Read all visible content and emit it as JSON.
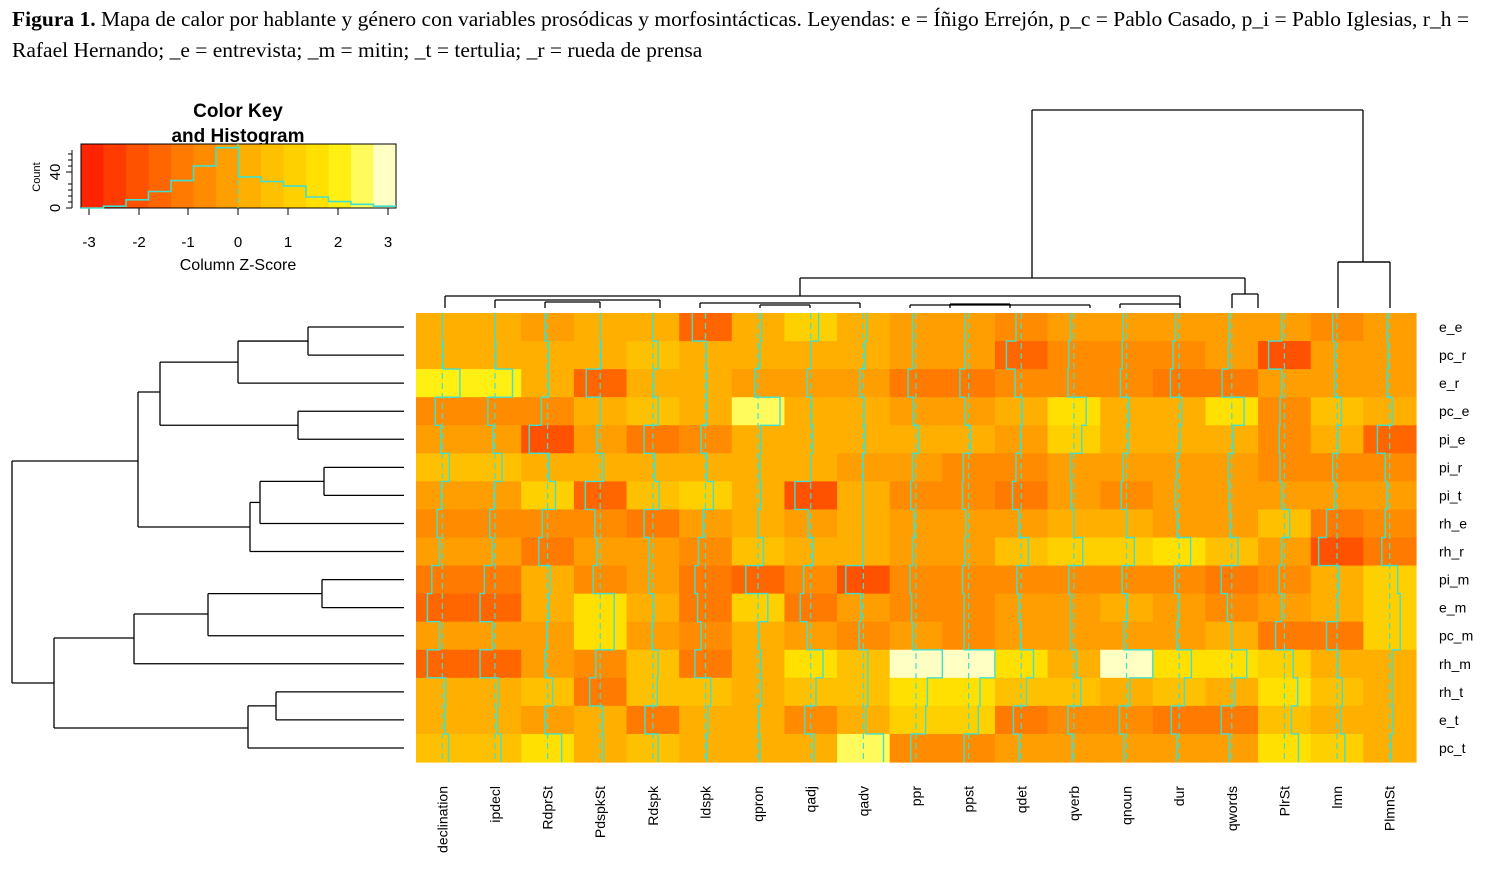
{
  "caption": {
    "label": "Figura 1.",
    "text": " Mapa de calor por hablante y género con variables prosódicas y morfosintácticas. Leyendas: e = Íñigo Errejón, p_c = Pablo Casado, p_i = Pablo Iglesias, r_h = Rafael Hernando; _e = entrevista; _m = mitin; _t = tertulia; _r = rueda de prensa"
  },
  "color_key": {
    "title_line1": "Color Key",
    "title_line2": "and Histogram",
    "ylabel": "Count",
    "yticks": [
      "0",
      "40"
    ],
    "xticks": [
      "-3",
      "-2",
      "-1",
      "0",
      "1",
      "2",
      "3"
    ],
    "xlabel": "Column Z-Score",
    "colors": [
      "#ff2400",
      "#ff3c00",
      "#ff5200",
      "#ff6600",
      "#ff7a00",
      "#ff8c00",
      "#ff9e00",
      "#ffaf00",
      "#ffc000",
      "#ffd000",
      "#ffe000",
      "#ffef12",
      "#fffb5c",
      "#ffffc4"
    ],
    "histogram_counts": [
      0,
      2,
      9,
      18,
      30,
      46,
      66,
      34,
      29,
      24,
      12,
      7,
      4,
      2
    ],
    "histogram_color": "#40e0d0"
  },
  "chart_data": {
    "type": "heatmap",
    "rows": [
      "e_e",
      "pc_r",
      "e_r",
      "pc_e",
      "pi_e",
      "pi_r",
      "pi_t",
      "rh_e",
      "rh_r",
      "pi_m",
      "e_m",
      "pc_m",
      "rh_m",
      "rh_t",
      "e_t",
      "pc_t"
    ],
    "columns": [
      "declination",
      "ipdecl",
      "RdprSt",
      "PdspkSt",
      "Rdspk",
      "ldspk",
      "qpron",
      "qadj",
      "qadv",
      "ppr",
      "ppst",
      "qdet",
      "qverb",
      "qnoun",
      "dur",
      "qwords",
      "PlrSt",
      "lmn",
      "PlmnSt"
    ],
    "values_zscore": [
      [
        0.0,
        0.0,
        -0.3,
        0.0,
        0.0,
        -1.5,
        0.4,
        0.9,
        0.4,
        -0.4,
        -0.4,
        -0.6,
        -0.4,
        -0.4,
        -0.4,
        -0.3,
        -0.3,
        -0.5,
        -0.3
      ],
      [
        0.1,
        0.1,
        0.1,
        0.1,
        0.6,
        0.1,
        0.2,
        0.0,
        0.2,
        -0.4,
        -0.4,
        -1.7,
        -0.6,
        -0.5,
        -0.7,
        -0.4,
        -1.8,
        -0.3,
        -0.2
      ],
      [
        2.0,
        2.0,
        0.1,
        -1.6,
        0.1,
        0.2,
        -0.4,
        -0.4,
        -0.4,
        -0.9,
        -1.0,
        -0.7,
        -0.7,
        -0.7,
        -1.0,
        -1.1,
        -0.3,
        -0.3,
        -0.3
      ],
      [
        -0.8,
        -0.8,
        -0.7,
        0.0,
        0.6,
        0.2,
        2.5,
        0.1,
        0.1,
        -0.3,
        -0.4,
        0.1,
        1.4,
        0.3,
        0.3,
        1.4,
        -0.5,
        0.5,
        0.3
      ],
      [
        -0.2,
        -0.2,
        -2.1,
        -0.4,
        -1.0,
        -0.5,
        0.3,
        0.2,
        0.2,
        0.3,
        0.2,
        -0.1,
        0.9,
        0.2,
        0.1,
        0.2,
        -0.6,
        0.1,
        -1.4
      ],
      [
        0.8,
        0.8,
        0.2,
        0.4,
        0.2,
        0.2,
        0.2,
        0.0,
        -0.1,
        -0.4,
        -0.6,
        -0.6,
        -0.4,
        -0.4,
        -0.3,
        -0.4,
        -0.5,
        -0.5,
        -0.5
      ],
      [
        -0.1,
        -0.1,
        0.9,
        -1.7,
        0.7,
        0.9,
        0.3,
        -1.8,
        0.0,
        -0.6,
        -0.7,
        -1.0,
        -0.3,
        -0.6,
        -0.4,
        -0.3,
        -0.3,
        -0.3,
        -0.3
      ],
      [
        -0.6,
        -0.6,
        -0.6,
        -0.6,
        -1.0,
        -0.3,
        0.0,
        -0.3,
        0.0,
        -0.2,
        -0.3,
        -0.3,
        0.0,
        0.0,
        -0.2,
        -0.2,
        0.6,
        -1.2,
        -0.5
      ],
      [
        -0.3,
        -0.3,
        -1.0,
        -0.4,
        -0.4,
        -0.8,
        0.6,
        0.3,
        0.0,
        -0.4,
        -0.4,
        0.8,
        1.0,
        0.9,
        1.3,
        0.7,
        -0.3,
        -2.1,
        -0.9
      ],
      [
        -1.2,
        -1.2,
        0.3,
        -0.8,
        -0.4,
        -1.2,
        -1.4,
        -0.8,
        -2.0,
        -0.7,
        -0.7,
        -0.5,
        -0.6,
        -0.5,
        -0.5,
        -1.2,
        -0.6,
        0.2,
        0.9
      ],
      [
        -1.7,
        -1.7,
        0.2,
        1.6,
        0.1,
        -0.9,
        1.1,
        -1.2,
        -0.3,
        -0.5,
        -0.5,
        -0.3,
        -0.4,
        0.1,
        -0.1,
        -0.5,
        -0.3,
        0.1,
        1.2
      ],
      [
        -0.3,
        -0.3,
        -0.1,
        1.6,
        -0.1,
        -0.5,
        0.1,
        -0.4,
        -0.5,
        -0.4,
        -0.5,
        -0.1,
        -0.4,
        -0.3,
        -0.3,
        0.0,
        -1.0,
        -1.2,
        1.2
      ],
      [
        -1.7,
        -1.7,
        -0.3,
        -0.5,
        0.6,
        -1.2,
        0.3,
        1.4,
        0.5,
        3.0,
        3.0,
        1.4,
        0.3,
        3.0,
        1.4,
        1.7,
        1.0,
        0.1,
        0.3
      ],
      [
        0.4,
        0.4,
        0.6,
        -1.2,
        0.5,
        0.6,
        0.4,
        0.6,
        0.5,
        1.3,
        1.3,
        0.6,
        0.8,
        0.4,
        0.6,
        0.3,
        1.5,
        0.6,
        0.3
      ],
      [
        0.3,
        0.3,
        -0.3,
        0.3,
        -0.9,
        0.3,
        0.1,
        -0.7,
        0.3,
        1.1,
        1.1,
        -0.9,
        -0.7,
        -0.8,
        -0.9,
        -1.2,
        0.8,
        0.4,
        0.4
      ],
      [
        0.7,
        0.7,
        1.6,
        0.4,
        0.6,
        0.2,
        0.2,
        0.4,
        2.3,
        -0.6,
        -0.5,
        -0.3,
        -0.2,
        -0.3,
        -0.3,
        -0.3,
        1.6,
        0.9,
        0.2
      ]
    ],
    "zlim": [
      -3,
      3
    ],
    "trace": "column",
    "trace_color": "#40e0d0",
    "row_dendrogram": "left",
    "column_dendrogram": "top"
  }
}
